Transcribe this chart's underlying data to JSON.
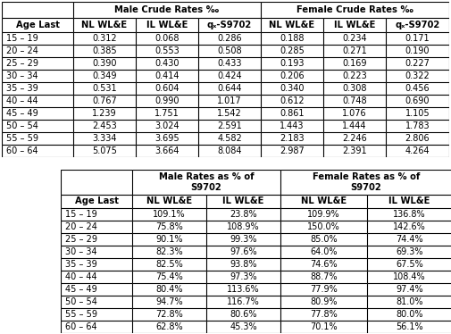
{
  "table1": {
    "col_headers": [
      "Age Last",
      "NL WL&E",
      "IL WL&E",
      "qₓ-S9702",
      "NL WL&E",
      "IL WL&E",
      "qₓ-S9702"
    ],
    "male_header": "Male Crude Rates ‰",
    "female_header": "Female Crude Rates ‰",
    "rows": [
      [
        "15 – 19",
        "0.312",
        "0.068",
        "0.286",
        "0.188",
        "0.234",
        "0.171"
      ],
      [
        "20 – 24",
        "0.385",
        "0.553",
        "0.508",
        "0.285",
        "0.271",
        "0.190"
      ],
      [
        "25 – 29",
        "0.390",
        "0.430",
        "0.433",
        "0.193",
        "0.169",
        "0.227"
      ],
      [
        "30 – 34",
        "0.349",
        "0.414",
        "0.424",
        "0.206",
        "0.223",
        "0.322"
      ],
      [
        "35 – 39",
        "0.531",
        "0.604",
        "0.644",
        "0.340",
        "0.308",
        "0.456"
      ],
      [
        "40 – 44",
        "0.767",
        "0.990",
        "1.017",
        "0.612",
        "0.748",
        "0.690"
      ],
      [
        "45 – 49",
        "1.239",
        "1.751",
        "1.542",
        "0.861",
        "1.076",
        "1.105"
      ],
      [
        "50 – 54",
        "2.453",
        "3.024",
        "2.591",
        "1.443",
        "1.444",
        "1.783"
      ],
      [
        "55 – 59",
        "3.334",
        "3.695",
        "4.582",
        "2.183",
        "2.246",
        "2.806"
      ],
      [
        "60 – 64",
        "5.075",
        "3.664",
        "8.084",
        "2.987",
        "2.391",
        "4.264"
      ]
    ]
  },
  "table2": {
    "col_headers": [
      "Age Last",
      "NL WL&E",
      "IL WL&E",
      "NL WL&E",
      "IL WL&E"
    ],
    "male_header": "Male Rates as % of\nS9702",
    "female_header": "Female Rates as % of\nS9702",
    "rows": [
      [
        "15 – 19",
        "109.1%",
        "23.8%",
        "109.9%",
        "136.8%"
      ],
      [
        "20 – 24",
        "75.8%",
        "108.9%",
        "150.0%",
        "142.6%"
      ],
      [
        "25 – 29",
        "90.1%",
        "99.3%",
        "85.0%",
        "74.4%"
      ],
      [
        "30 – 34",
        "82.3%",
        "97.6%",
        "64.0%",
        "69.3%"
      ],
      [
        "35 – 39",
        "82.5%",
        "93.8%",
        "74.6%",
        "67.5%"
      ],
      [
        "40 – 44",
        "75.4%",
        "97.3%",
        "88.7%",
        "108.4%"
      ],
      [
        "45 – 49",
        "80.4%",
        "113.6%",
        "77.9%",
        "97.4%"
      ],
      [
        "50 – 54",
        "94.7%",
        "116.7%",
        "80.9%",
        "81.0%"
      ],
      [
        "55 – 59",
        "72.8%",
        "80.6%",
        "77.8%",
        "80.0%"
      ],
      [
        "60 – 64",
        "62.8%",
        "45.3%",
        "70.1%",
        "56.1%"
      ]
    ]
  },
  "bg_color": "#ffffff",
  "header_bg": "#d0d0d0",
  "font_size": 7.0,
  "header_font_size": 7.2
}
